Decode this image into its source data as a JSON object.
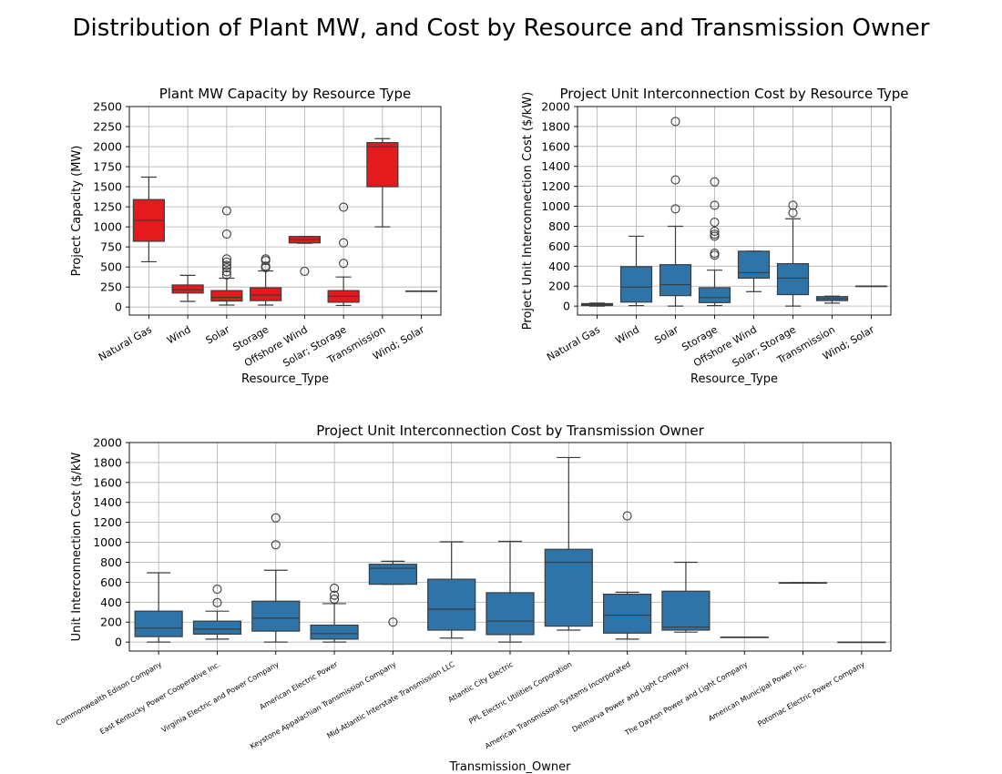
{
  "suptitle": "Distribution of Plant MW, and Cost by Resource and Transmission Owner",
  "chart_data": [
    {
      "type": "box",
      "title": "Plant MW Capacity by Resource Type",
      "xlabel": "Resource_Type",
      "ylabel": "Project Capacity (MW)",
      "ylim": [
        -100,
        2500
      ],
      "yticks": [
        0,
        250,
        500,
        750,
        1000,
        1250,
        1500,
        1750,
        2000,
        2250,
        2500
      ],
      "grid": true,
      "box_color": "#e41a1c",
      "categories": [
        "Natural Gas",
        "Wind",
        "Solar",
        "Storage",
        "Offshore Wind",
        "Solar; Storage",
        "Transmission",
        "Wind; Solar"
      ],
      "boxes": [
        {
          "whislo": 565,
          "q1": 820,
          "med": 1080,
          "q3": 1340,
          "whishi": 1620,
          "fliers": []
        },
        {
          "whislo": 70,
          "q1": 175,
          "med": 215,
          "q3": 275,
          "whishi": 395,
          "fliers": []
        },
        {
          "whislo": 25,
          "q1": 75,
          "med": 120,
          "q3": 205,
          "whishi": 360,
          "fliers": [
            400,
            440,
            490,
            520,
            560,
            600,
            910,
            1200
          ]
        },
        {
          "whislo": 25,
          "q1": 80,
          "med": 150,
          "q3": 240,
          "whishi": 450,
          "fliers": [
            490,
            510,
            580,
            600
          ]
        },
        {
          "whislo": 795,
          "q1": 800,
          "med": 840,
          "q3": 880,
          "whishi": 880,
          "fliers": [
            445
          ]
        },
        {
          "whislo": 20,
          "q1": 60,
          "med": 135,
          "q3": 205,
          "whishi": 375,
          "fliers": [
            545,
            800,
            1245
          ]
        },
        {
          "whislo": 1000,
          "q1": 1500,
          "med": 2000,
          "q3": 2050,
          "whishi": 2100,
          "fliers": []
        },
        {
          "whislo": 200,
          "q1": 200,
          "med": 200,
          "q3": 200,
          "whishi": 200,
          "fliers": []
        }
      ]
    },
    {
      "type": "box",
      "title": "Project Unit Interconnection Cost by Resource Type",
      "xlabel": "Resource_Type",
      "ylabel": "Project Unit Interconnection Cost ($/kW)",
      "ylim": [
        -90,
        2000
      ],
      "yticks": [
        0,
        200,
        400,
        600,
        800,
        1000,
        1200,
        1400,
        1600,
        1800,
        2000
      ],
      "grid": true,
      "box_color": "#2e74a8",
      "categories": [
        "Natural Gas",
        "Wind",
        "Solar",
        "Storage",
        "Offshore Wind",
        "Solar; Storage",
        "Transmission",
        "Wind; Solar"
      ],
      "boxes": [
        {
          "whislo": 0,
          "q1": 5,
          "med": 15,
          "q3": 25,
          "whishi": 30,
          "fliers": []
        },
        {
          "whislo": 5,
          "q1": 40,
          "med": 190,
          "q3": 395,
          "whishi": 700,
          "fliers": []
        },
        {
          "whislo": 0,
          "q1": 105,
          "med": 215,
          "q3": 415,
          "whishi": 800,
          "fliers": [
            975,
            1265,
            1850
          ]
        },
        {
          "whislo": 5,
          "q1": 35,
          "med": 85,
          "q3": 185,
          "whishi": 360,
          "fliers": [
            510,
            530,
            700,
            720,
            750,
            840,
            1010,
            1245
          ]
        },
        {
          "whislo": 145,
          "q1": 280,
          "med": 335,
          "q3": 550,
          "whishi": 550,
          "fliers": []
        },
        {
          "whislo": 0,
          "q1": 115,
          "med": 280,
          "q3": 425,
          "whishi": 875,
          "fliers": [
            935,
            1010
          ]
        },
        {
          "whislo": 30,
          "q1": 55,
          "med": 75,
          "q3": 95,
          "whishi": 100,
          "fliers": []
        },
        {
          "whislo": 200,
          "q1": 200,
          "med": 200,
          "q3": 200,
          "whishi": 200,
          "fliers": []
        }
      ]
    },
    {
      "type": "box",
      "title": "Project Unit Interconnection Cost by Transmission Owner",
      "xlabel": "Transmission_Owner",
      "ylabel": "Unit Interconnection Cost ($/kW",
      "ylim": [
        -90,
        2000
      ],
      "yticks": [
        0,
        200,
        400,
        600,
        800,
        1000,
        1200,
        1400,
        1600,
        1800,
        2000
      ],
      "grid": true,
      "box_color": "#2e74a8",
      "categories": [
        "Commonwealth Edison Company",
        "East Kentucky Power Cooperative Inc.",
        "Virginia Electric and Power Company",
        "American Electric Power",
        "Keystone Appalachian Transmission Company",
        "Mid-Atlantic Interstate Transmission LLC",
        "Atlantic City Electric",
        "PPL Electric Utilities Corporation",
        "American Transmission Systems Incorporated",
        "Delmarva Power and Light Company",
        "The Dayton Power and Light Company",
        "American Municipal Power Inc.",
        "Potomac Electric Power Company"
      ],
      "boxes": [
        {
          "whislo": 0,
          "q1": 55,
          "med": 140,
          "q3": 310,
          "whishi": 695,
          "fliers": []
        },
        {
          "whislo": 30,
          "q1": 80,
          "med": 130,
          "q3": 210,
          "whishi": 310,
          "fliers": [
            395,
            530
          ]
        },
        {
          "whislo": 0,
          "q1": 110,
          "med": 240,
          "q3": 410,
          "whishi": 720,
          "fliers": [
            975,
            1245
          ]
        },
        {
          "whislo": 0,
          "q1": 30,
          "med": 85,
          "q3": 170,
          "whishi": 385,
          "fliers": [
            430,
            470,
            540
          ]
        },
        {
          "whislo": 580,
          "q1": 580,
          "med": 740,
          "q3": 780,
          "whishi": 810,
          "fliers": [
            200
          ]
        },
        {
          "whislo": 40,
          "q1": 120,
          "med": 330,
          "q3": 630,
          "whishi": 1005,
          "fliers": []
        },
        {
          "whislo": 0,
          "q1": 75,
          "med": 210,
          "q3": 495,
          "whishi": 1010,
          "fliers": []
        },
        {
          "whislo": 120,
          "q1": 160,
          "med": 800,
          "q3": 930,
          "whishi": 1850,
          "fliers": []
        },
        {
          "whislo": 30,
          "q1": 90,
          "med": 270,
          "q3": 480,
          "whishi": 500,
          "fliers": [
            1265
          ]
        },
        {
          "whislo": 100,
          "q1": 120,
          "med": 150,
          "q3": 510,
          "whishi": 800,
          "fliers": []
        },
        {
          "whislo": 50,
          "q1": 50,
          "med": 50,
          "q3": 50,
          "whishi": 50,
          "fliers": []
        },
        {
          "whislo": 595,
          "q1": 595,
          "med": 595,
          "q3": 595,
          "whishi": 595,
          "fliers": []
        },
        {
          "whislo": 0,
          "q1": 0,
          "med": 0,
          "q3": 0,
          "whishi": 0,
          "fliers": []
        }
      ]
    }
  ]
}
